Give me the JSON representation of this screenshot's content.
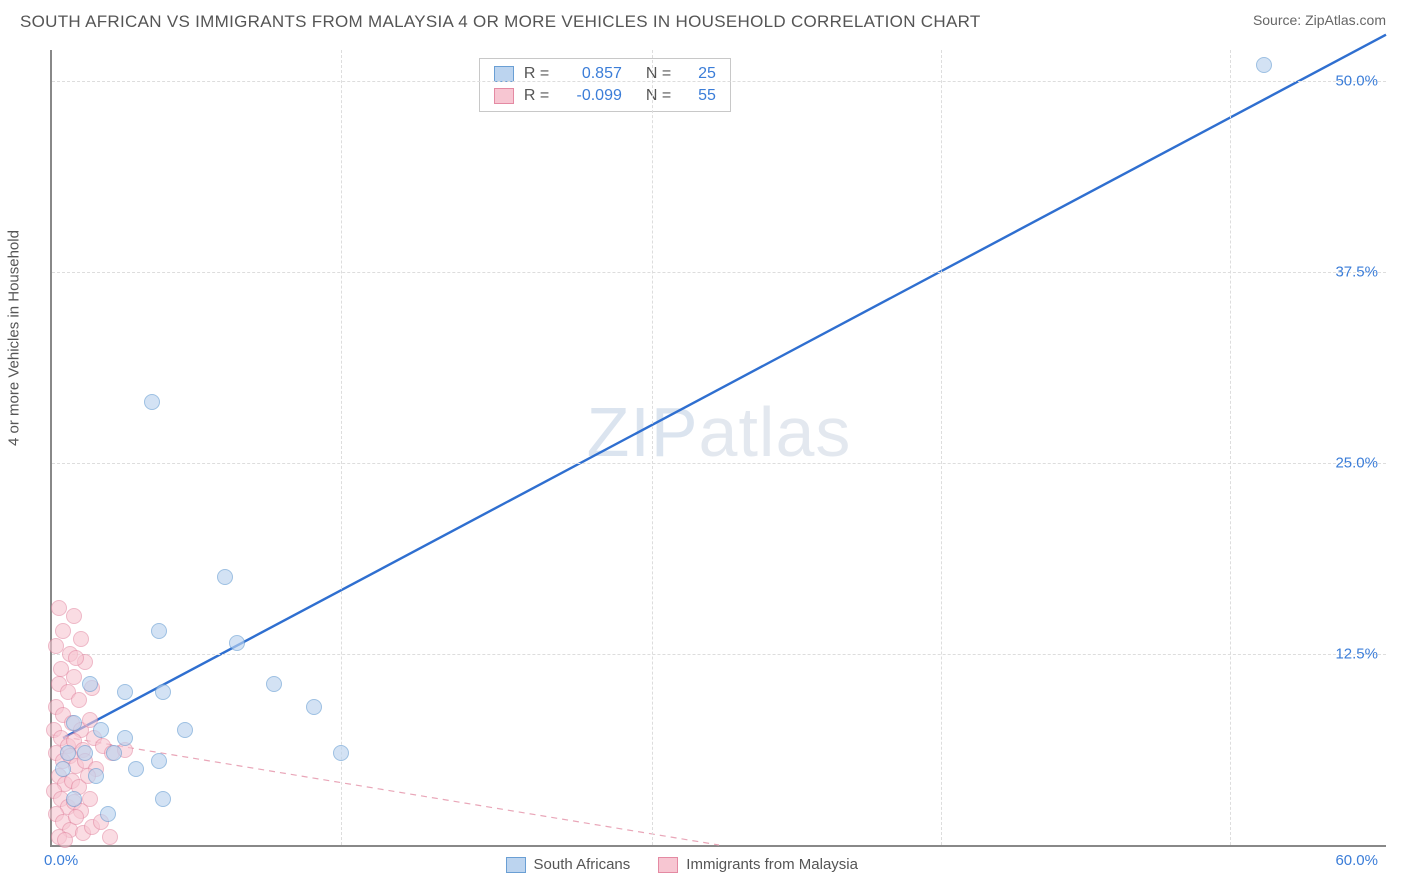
{
  "header": {
    "title": "SOUTH AFRICAN VS IMMIGRANTS FROM MALAYSIA 4 OR MORE VEHICLES IN HOUSEHOLD CORRELATION CHART",
    "source": "Source: ZipAtlas.com"
  },
  "watermark": {
    "a": "ZIP",
    "b": "atlas"
  },
  "chart": {
    "type": "scatter",
    "y_axis_title": "4 or more Vehicles in Household",
    "xlim": [
      0,
      60
    ],
    "ylim": [
      0,
      52
    ],
    "x_ticks": [
      0,
      60
    ],
    "x_tick_labels": [
      "0.0%",
      "60.0%"
    ],
    "y_ticks": [
      12.5,
      25.0,
      37.5,
      50.0
    ],
    "y_tick_labels": [
      "12.5%",
      "25.0%",
      "37.5%",
      "50.0%"
    ],
    "gridline_color": "#dddddd",
    "axis_color": "#888888",
    "tick_label_color": "#3b7dd8",
    "tick_fontsize": 15,
    "background_color": "#ffffff",
    "point_radius": 8,
    "point_border_width": 1,
    "vertical_ticks_x": [
      13,
      27,
      40,
      53
    ],
    "series": [
      {
        "name": "South Africans",
        "fill": "#bcd4ef",
        "stroke": "#6a9fd4",
        "fill_opacity": 0.65,
        "trend": {
          "x1": 0.5,
          "y1": 7.0,
          "x2": 60,
          "y2": 53,
          "color": "#2f6fd0",
          "width": 2.4,
          "dash": "none"
        },
        "R": "0.857",
        "N": "25",
        "points": [
          [
            54.5,
            51.0
          ],
          [
            4.5,
            29.0
          ],
          [
            7.8,
            17.5
          ],
          [
            4.8,
            14.0
          ],
          [
            8.3,
            13.2
          ],
          [
            1.7,
            10.5
          ],
          [
            3.3,
            10.0
          ],
          [
            5.0,
            10.0
          ],
          [
            10.0,
            10.5
          ],
          [
            11.8,
            9.0
          ],
          [
            1.0,
            8.0
          ],
          [
            2.2,
            7.5
          ],
          [
            3.3,
            7.0
          ],
          [
            6.0,
            7.5
          ],
          [
            0.7,
            6.0
          ],
          [
            1.5,
            6.0
          ],
          [
            2.8,
            6.0
          ],
          [
            4.8,
            5.5
          ],
          [
            13.0,
            6.0
          ],
          [
            0.5,
            5.0
          ],
          [
            2.0,
            4.5
          ],
          [
            3.8,
            5.0
          ],
          [
            5.0,
            3.0
          ],
          [
            1.0,
            3.0
          ],
          [
            2.5,
            2.0
          ]
        ]
      },
      {
        "name": "Immigrants from Malaysia",
        "fill": "#f7c6d2",
        "stroke": "#e48aa3",
        "fill_opacity": 0.6,
        "trend": {
          "x1": 0,
          "y1": 7.2,
          "x2": 30,
          "y2": 0,
          "color": "#e9a6b8",
          "width": 1.2,
          "dash": "6,5"
        },
        "R": "-0.099",
        "N": "55",
        "points": [
          [
            0.3,
            15.5
          ],
          [
            1.0,
            15.0
          ],
          [
            0.5,
            14.0
          ],
          [
            1.3,
            13.5
          ],
          [
            0.2,
            13.0
          ],
          [
            0.8,
            12.5
          ],
          [
            1.5,
            12.0
          ],
          [
            0.4,
            11.5
          ],
          [
            1.0,
            11.0
          ],
          [
            1.1,
            12.2
          ],
          [
            0.3,
            10.5
          ],
          [
            0.7,
            10.0
          ],
          [
            1.2,
            9.5
          ],
          [
            1.8,
            10.3
          ],
          [
            0.2,
            9.0
          ],
          [
            0.5,
            8.5
          ],
          [
            0.9,
            8.0
          ],
          [
            1.3,
            7.5
          ],
          [
            1.7,
            8.2
          ],
          [
            0.1,
            7.5
          ],
          [
            0.4,
            7.0
          ],
          [
            0.7,
            6.5
          ],
          [
            1.0,
            6.8
          ],
          [
            1.4,
            6.2
          ],
          [
            1.9,
            7.0
          ],
          [
            2.3,
            6.5
          ],
          [
            0.2,
            6.0
          ],
          [
            0.5,
            5.5
          ],
          [
            0.8,
            5.8
          ],
          [
            1.1,
            5.2
          ],
          [
            1.5,
            5.5
          ],
          [
            2.0,
            5.0
          ],
          [
            2.7,
            6.0
          ],
          [
            3.3,
            6.2
          ],
          [
            0.3,
            4.5
          ],
          [
            0.6,
            4.0
          ],
          [
            0.9,
            4.2
          ],
          [
            1.2,
            3.8
          ],
          [
            1.6,
            4.5
          ],
          [
            0.1,
            3.5
          ],
          [
            0.4,
            3.0
          ],
          [
            0.7,
            2.5
          ],
          [
            1.0,
            2.8
          ],
          [
            1.3,
            2.2
          ],
          [
            1.7,
            3.0
          ],
          [
            0.2,
            2.0
          ],
          [
            0.5,
            1.5
          ],
          [
            0.8,
            1.0
          ],
          [
            1.1,
            1.8
          ],
          [
            1.4,
            0.8
          ],
          [
            1.8,
            1.2
          ],
          [
            2.2,
            1.5
          ],
          [
            2.6,
            0.5
          ],
          [
            0.3,
            0.5
          ],
          [
            0.6,
            0.3
          ]
        ]
      }
    ]
  },
  "legend_top": {
    "rows": [
      {
        "swatch_fill": "#bcd4ef",
        "swatch_stroke": "#6a9fd4",
        "R_label": "R =",
        "R_value": "0.857",
        "N_label": "N =",
        "N_value": "25"
      },
      {
        "swatch_fill": "#f7c6d2",
        "swatch_stroke": "#e48aa3",
        "R_label": "R =",
        "R_value": "-0.099",
        "N_label": "N =",
        "N_value": "55"
      }
    ]
  },
  "legend_bottom": {
    "items": [
      {
        "swatch_fill": "#bcd4ef",
        "swatch_stroke": "#6a9fd4",
        "label": "South Africans"
      },
      {
        "swatch_fill": "#f7c6d2",
        "swatch_stroke": "#e48aa3",
        "label": "Immigrants from Malaysia"
      }
    ]
  }
}
